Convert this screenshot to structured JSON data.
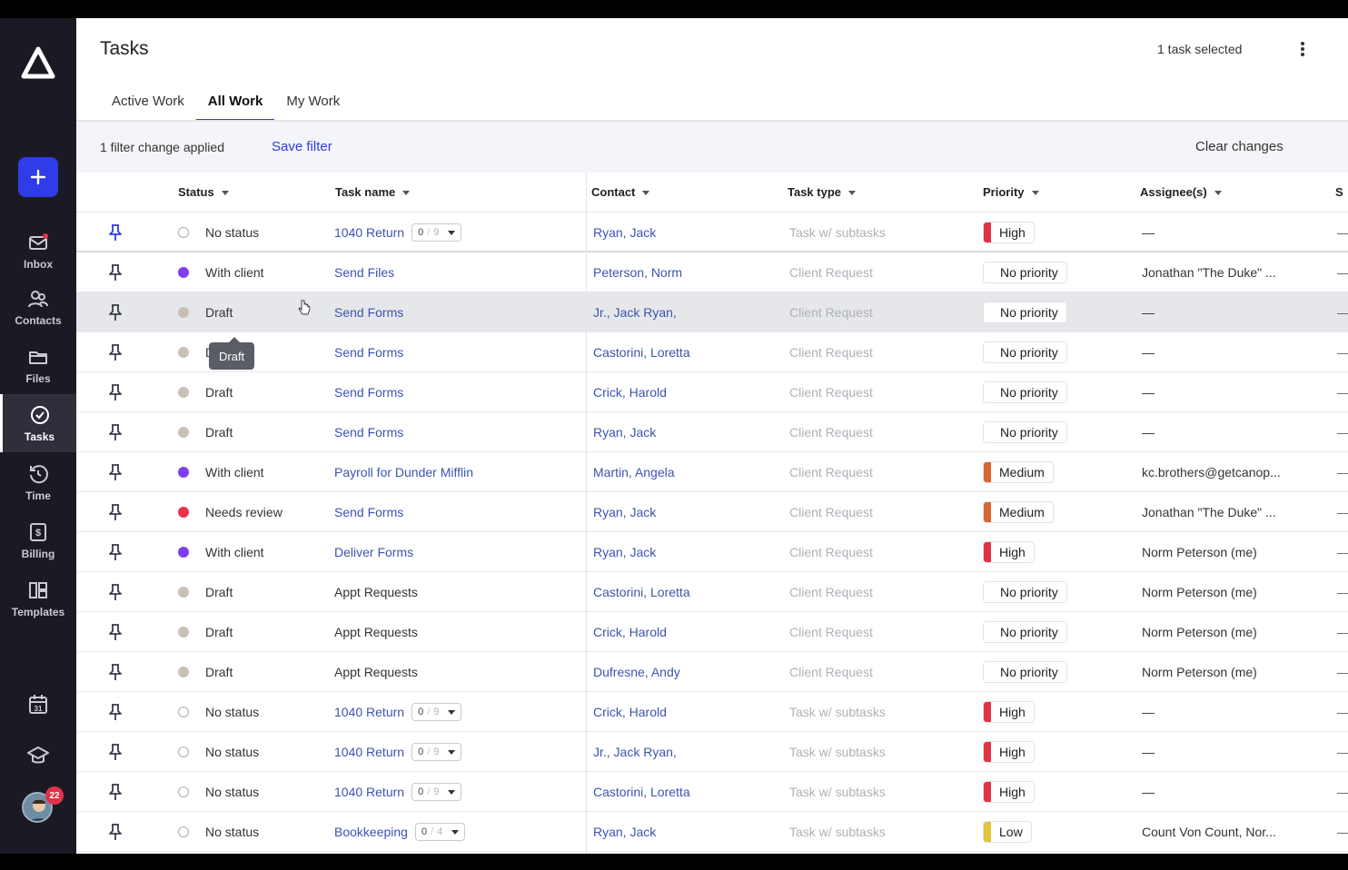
{
  "app": {
    "page_title": "Tasks",
    "selected_count": "1 task selected"
  },
  "sidebar": {
    "add_label": "+",
    "items": [
      {
        "label": "Inbox",
        "icon": "mail-icon"
      },
      {
        "label": "Contacts",
        "icon": "contacts-icon"
      },
      {
        "label": "Files",
        "icon": "folder-icon"
      },
      {
        "label": "Tasks",
        "icon": "check-circle-icon",
        "active": true
      },
      {
        "label": "Time",
        "icon": "clock-icon"
      },
      {
        "label": "Billing",
        "icon": "dollar-icon"
      },
      {
        "label": "Templates",
        "icon": "templates-icon"
      }
    ],
    "bottom_icons": [
      "calendar-icon",
      "graduation-cap-icon"
    ],
    "avatar_badge": "22",
    "calendar_day": "31"
  },
  "tabs": [
    {
      "label": "Active Work"
    },
    {
      "label": "All Work",
      "active": true
    },
    {
      "label": "My Work"
    }
  ],
  "filterbar": {
    "text": "1 filter change applied",
    "save_label": "Save filter",
    "clear_label": "Clear changes"
  },
  "columns": {
    "status": "Status",
    "task_name": "Task name",
    "contact": "Contact",
    "task_type": "Task type",
    "priority": "Priority",
    "assignees": "Assignee(s)",
    "extra": "S"
  },
  "tooltip": "Draft",
  "colors": {
    "accent": "#2f3ce8",
    "status_none": "#ffffff",
    "status_draft": "#c8bfb6",
    "status_with_client": "#7f3df0",
    "status_needs_review": "#e8334a",
    "priority_high": "#e0334a",
    "priority_medium": "#d8662e",
    "priority_low": "#e2c53a"
  },
  "rows": [
    {
      "status": "No status",
      "status_key": "none",
      "task": "1040 Return",
      "sub_done": "0",
      "sub_total": "9",
      "contact": "Ryan, Jack",
      "type": "Task w/ subtasks",
      "priority": "High",
      "pkey": "high",
      "assignee": "—",
      "trail": "—"
    },
    {
      "status": "With client",
      "status_key": "with_client",
      "task": "Send Files",
      "contact": "Peterson, Norm",
      "type": "Client Request",
      "priority": "No priority",
      "pkey": "none",
      "assignee": "Jonathan \"The Duke\" ...",
      "trail": "—"
    },
    {
      "status": "Draft",
      "status_key": "draft",
      "task": "Send Forms",
      "contact": "Jr., Jack Ryan,",
      "type": "Client Request",
      "priority": "No priority",
      "pkey": "none",
      "assignee": "—",
      "trail": "—"
    },
    {
      "status": "Draft",
      "status_key": "draft",
      "task": "Send Forms",
      "contact": "Castorini, Loretta",
      "type": "Client Request",
      "priority": "No priority",
      "pkey": "none",
      "assignee": "—",
      "trail": "—"
    },
    {
      "status": "Draft",
      "status_key": "draft",
      "task": "Send Forms",
      "contact": "Crick, Harold",
      "type": "Client Request",
      "priority": "No priority",
      "pkey": "none",
      "assignee": "—",
      "trail": "—"
    },
    {
      "status": "Draft",
      "status_key": "draft",
      "task": "Send Forms",
      "contact": "Ryan, Jack",
      "type": "Client Request",
      "priority": "No priority",
      "pkey": "none",
      "assignee": "—",
      "trail": "—"
    },
    {
      "status": "With client",
      "status_key": "with_client",
      "task": "Payroll for Dunder Mifflin",
      "contact": "Martin, Angela",
      "type": "Client Request",
      "priority": "Medium",
      "pkey": "medium",
      "assignee": "kc.brothers@getcanop...",
      "trail": "—"
    },
    {
      "status": "Needs review",
      "status_key": "needs_review",
      "task": "Send Forms",
      "contact": "Ryan, Jack",
      "type": "Client Request",
      "priority": "Medium",
      "pkey": "medium",
      "assignee": "Jonathan \"The Duke\" ...",
      "trail": "—"
    },
    {
      "status": "With client",
      "status_key": "with_client",
      "task": "Deliver Forms",
      "contact": "Ryan, Jack",
      "type": "Client Request",
      "priority": "High",
      "pkey": "high",
      "assignee": "Norm Peterson (me)",
      "trail": "—"
    },
    {
      "status": "Draft",
      "status_key": "draft",
      "task": "Appt Requests",
      "plain": true,
      "contact": "Castorini, Loretta",
      "type": "Client Request",
      "priority": "No priority",
      "pkey": "none",
      "assignee": "Norm Peterson (me)",
      "trail": "—"
    },
    {
      "status": "Draft",
      "status_key": "draft",
      "task": "Appt Requests",
      "plain": true,
      "contact": "Crick, Harold",
      "type": "Client Request",
      "priority": "No priority",
      "pkey": "none",
      "assignee": "Norm Peterson (me)",
      "trail": "—"
    },
    {
      "status": "Draft",
      "status_key": "draft",
      "task": "Appt Requests",
      "plain": true,
      "contact": "Dufresne, Andy",
      "type": "Client Request",
      "priority": "No priority",
      "pkey": "none",
      "assignee": "Norm Peterson (me)",
      "trail": "—"
    },
    {
      "status": "No status",
      "status_key": "none",
      "task": "1040 Return",
      "sub_done": "0",
      "sub_total": "9",
      "contact": "Crick, Harold",
      "type": "Task w/ subtasks",
      "priority": "High",
      "pkey": "high",
      "assignee": "—",
      "trail": "—"
    },
    {
      "status": "No status",
      "status_key": "none",
      "task": "1040 Return",
      "sub_done": "0",
      "sub_total": "9",
      "contact": "Jr., Jack Ryan,",
      "type": "Task w/ subtasks",
      "priority": "High",
      "pkey": "high",
      "assignee": "—",
      "trail": "—"
    },
    {
      "status": "No status",
      "status_key": "none",
      "task": "1040 Return",
      "sub_done": "0",
      "sub_total": "9",
      "contact": "Castorini, Loretta",
      "type": "Task w/ subtasks",
      "priority": "High",
      "pkey": "high",
      "assignee": "—",
      "trail": "—"
    },
    {
      "status": "No status",
      "status_key": "none",
      "task": "Bookkeeping",
      "sub_done": "0",
      "sub_total": "4",
      "contact": "Ryan, Jack",
      "type": "Task w/ subtasks",
      "priority": "Low",
      "pkey": "low",
      "assignee": "Count Von Count, Nor...",
      "trail": "—"
    }
  ]
}
